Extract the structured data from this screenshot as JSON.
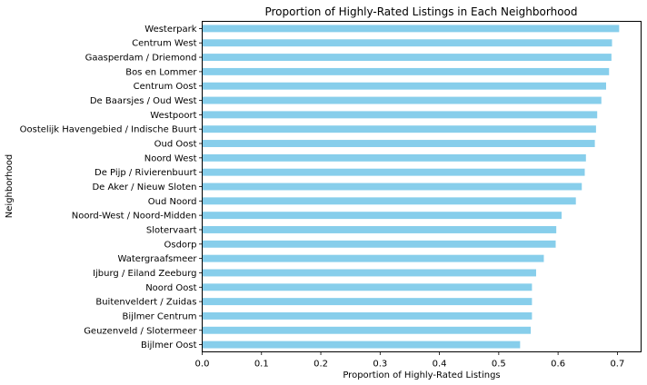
{
  "chart_data": {
    "type": "bar",
    "orientation": "horizontal",
    "title": "Proportion of Highly-Rated Listings in Each Neighborhood",
    "xlabel": "Proportion of Highly-Rated Listings",
    "ylabel": "Neighborhood",
    "xlim": [
      0,
      0.74
    ],
    "xticks": [
      "0.0",
      "0.1",
      "0.2",
      "0.3",
      "0.4",
      "0.5",
      "0.6",
      "0.7"
    ],
    "grid": false,
    "legend": "none",
    "bar_color": "#87ceeb",
    "categories": [
      "Westerpark",
      "Centrum West",
      "Gaasperdam / Driemond",
      "Bos en Lommer",
      "Centrum Oost",
      "De Baarsjes / Oud West",
      "Westpoort",
      "Oostelijk Havengebied / Indische Buurt",
      "Oud Oost",
      "Noord West",
      "De Pijp / Rivierenbuurt",
      "De Aker / Nieuw Sloten",
      "Oud Noord",
      "Noord-West / Noord-Midden",
      "Slotervaart",
      "Osdorp",
      "Watergraafsmeer",
      "Ijburg / Eiland Zeeburg",
      "Noord Oost",
      "Buitenveldert / Zuidas",
      "Bijlmer Centrum",
      "Geuzenveld / Slotermeer",
      "Bijlmer Oost"
    ],
    "values": [
      0.703,
      0.691,
      0.69,
      0.686,
      0.681,
      0.673,
      0.666,
      0.664,
      0.662,
      0.647,
      0.645,
      0.64,
      0.63,
      0.606,
      0.597,
      0.596,
      0.576,
      0.563,
      0.556,
      0.556,
      0.556,
      0.554,
      0.536
    ]
  }
}
